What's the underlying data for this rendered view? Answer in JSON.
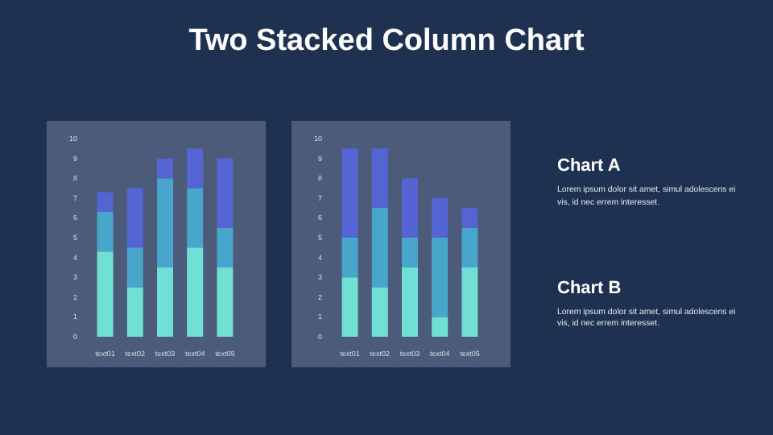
{
  "chart_data": [
    {
      "type": "other",
      "title": "Two Stacked Column Chart"
    },
    {
      "type": "bar",
      "categories": [
        "text01",
        "text02",
        "text03",
        "text04",
        "text05"
      ],
      "stacked": true,
      "ylim": [
        0,
        10
      ],
      "yticks": [
        0,
        1,
        2,
        3,
        4,
        5,
        6,
        7,
        8,
        9,
        10
      ],
      "grid": false,
      "series": [
        {
          "color": "#6fe0d3",
          "values": [
            4.3,
            2.5,
            3.5,
            4.5,
            3.5
          ]
        },
        {
          "color": "#47a6c9",
          "values": [
            2,
            2,
            4.5,
            3,
            2
          ]
        },
        {
          "color": "#5564d3",
          "values": [
            1,
            3,
            1,
            2,
            3.5
          ]
        }
      ]
    },
    {
      "type": "bar",
      "categories": [
        "text01",
        "text02",
        "text03",
        "text04",
        "text05"
      ],
      "stacked": true,
      "ylim": [
        0,
        10
      ],
      "yticks": [
        0,
        1,
        2,
        3,
        4,
        5,
        6,
        7,
        8,
        9,
        10
      ],
      "grid": false,
      "series": [
        {
          "color": "#6fe0d3",
          "values": [
            3,
            2.5,
            3.5,
            1,
            3.5
          ]
        },
        {
          "color": "#47a6c9",
          "values": [
            2,
            4,
            1.5,
            4,
            2
          ]
        },
        {
          "color": "#5564d3",
          "values": [
            4.5,
            3,
            3,
            2,
            1
          ]
        }
      ]
    },
    {
      "type": "other",
      "annotations": [
        "Chart A",
        "Lorem ipsum dolor sit amet, simul adolescens ei vis, id nec errem interesset.",
        "Chart B",
        "Lorem ipsum dolor sit amet, simul adolescens ei vis, id nec errem interesset."
      ]
    }
  ]
}
